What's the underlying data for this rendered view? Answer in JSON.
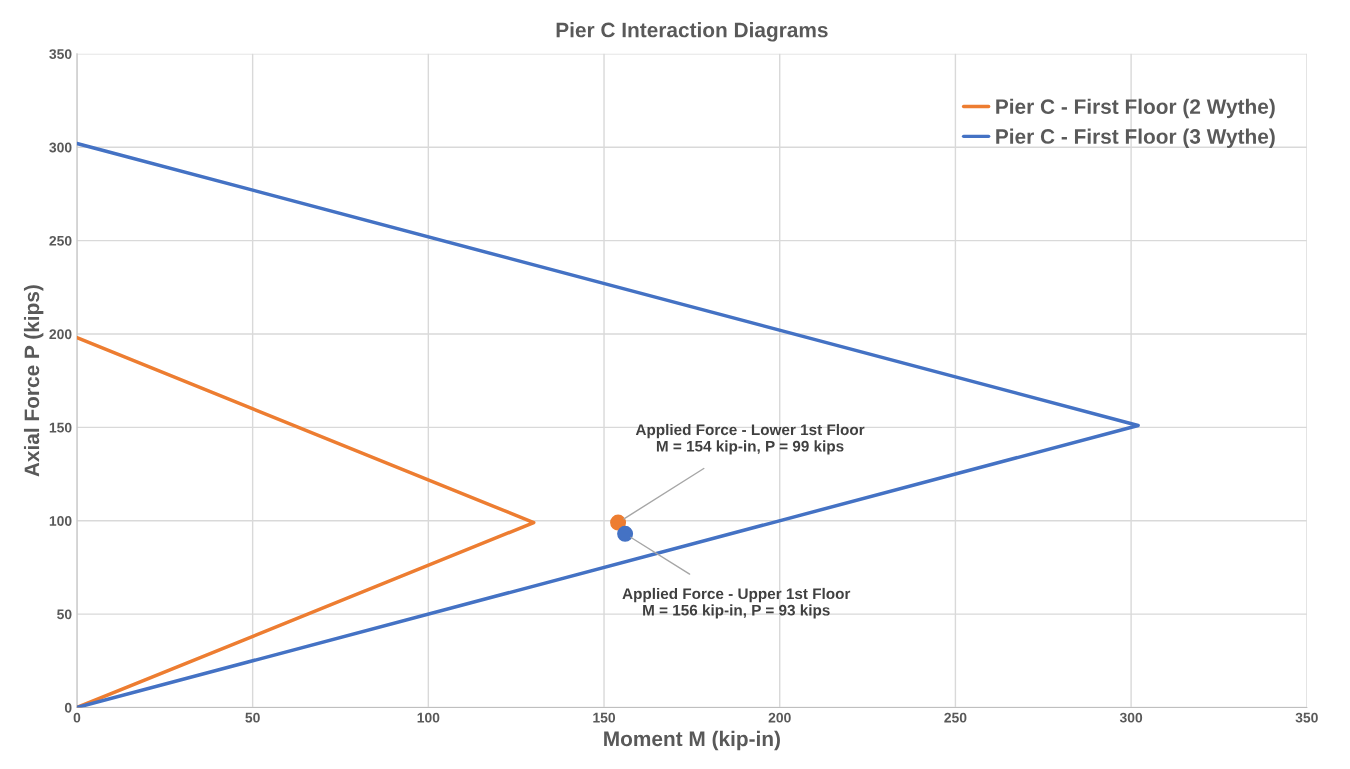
{
  "chart_data": {
    "type": "line",
    "title": "Pier C Interaction Diagrams",
    "xlabel": "Moment M (kip-in)",
    "ylabel": "Axial Force P (kips)",
    "series": [
      {
        "name": "Pier C - First Floor (2 Wythe)",
        "color": "#ed7d31",
        "x": [
          0,
          130,
          0
        ],
        "values": [
          198,
          99,
          0
        ]
      },
      {
        "name": "Pier C - First Floor (3 Wythe)",
        "color": "#4472c4",
        "x": [
          0,
          302,
          0
        ],
        "values": [
          302,
          151,
          0
        ]
      },
      {
        "type": "scatter",
        "color": "#ed7d31",
        "x": [
          154
        ],
        "values": [
          99
        ]
      },
      {
        "type": "scatter",
        "color": "#4472c4",
        "x": [
          156
        ],
        "values": [
          93
        ]
      }
    ],
    "annotations": [
      {
        "text": "Applied Force - Lower 1st Floor\nM = 154 kip-in, P = 99 kips",
        "x": 154,
        "y": 99
      },
      {
        "text": "Applied Force - Upper 1st Floor\nM = 156 kip-in, P = 93 kips",
        "x": 156,
        "y": 93
      }
    ],
    "xlim": [
      0,
      350
    ],
    "xticks": [
      0,
      50,
      100,
      150,
      200,
      250,
      300,
      350
    ],
    "ylim": [
      0,
      350
    ],
    "yticks": [
      0,
      50,
      100,
      150,
      200,
      250,
      300,
      350
    ],
    "grid": true,
    "legend": "top right"
  }
}
